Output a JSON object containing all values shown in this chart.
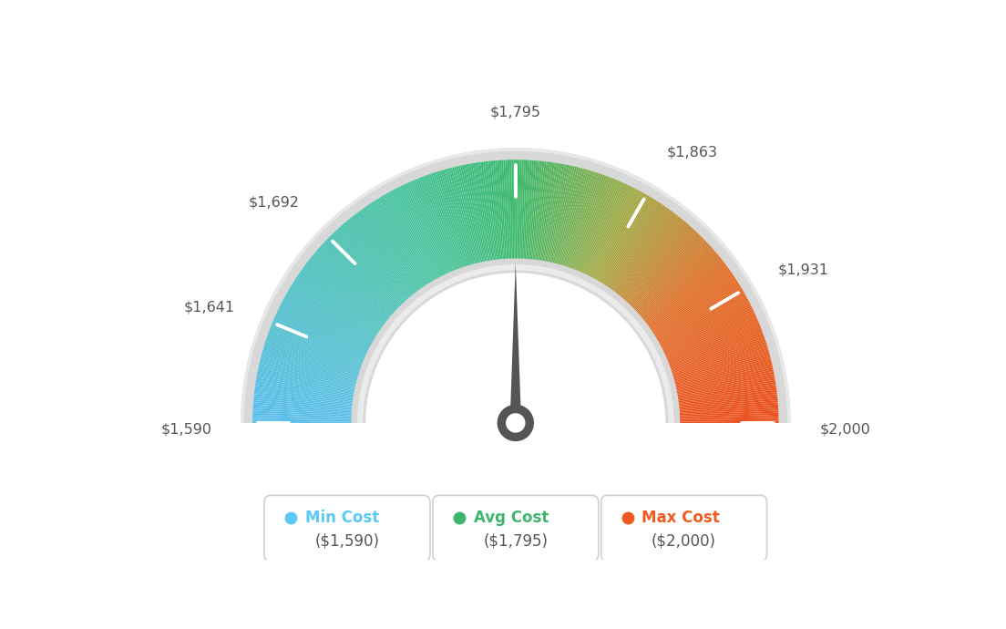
{
  "min_val": 1590,
  "max_val": 2000,
  "avg_val": 1795,
  "tick_labels": [
    "$1,590",
    "$1,641",
    "$1,692",
    "$1,795",
    "$1,863",
    "$1,931",
    "$2,000"
  ],
  "tick_values": [
    1590,
    1641,
    1692,
    1795,
    1863,
    1931,
    2000
  ],
  "legend_items": [
    {
      "label": "Min Cost",
      "value": "($1,590)",
      "color": "#5bc8f5"
    },
    {
      "label": "Avg Cost",
      "value": "($1,795)",
      "color": "#3db56c"
    },
    {
      "label": "Max Cost",
      "value": "($2,000)",
      "color": "#f05a1e"
    }
  ],
  "background_color": "#ffffff",
  "needle_value": 1795,
  "color_stops": [
    [
      0.0,
      [
        91,
        190,
        235
      ]
    ],
    [
      0.35,
      [
        72,
        195,
        158
      ]
    ],
    [
      0.5,
      [
        61,
        185,
        110
      ]
    ],
    [
      0.65,
      [
        160,
        170,
        70
      ]
    ],
    [
      0.8,
      [
        225,
        110,
        40
      ]
    ],
    [
      1.0,
      [
        235,
        80,
        30
      ]
    ]
  ]
}
